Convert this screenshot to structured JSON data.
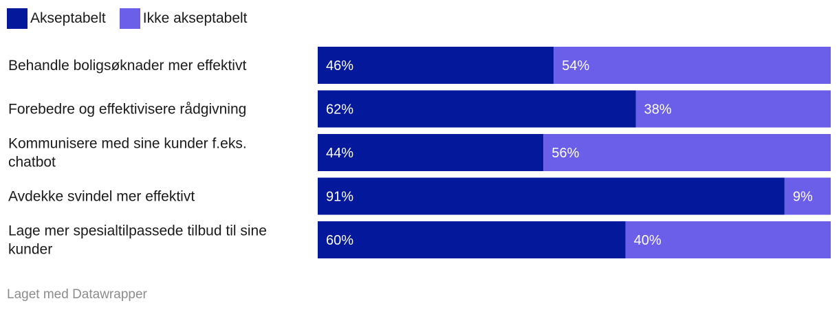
{
  "chart_data": {
    "type": "bar",
    "stacked": true,
    "orientation": "horizontal",
    "categories": [
      "Behandle boligsøknader mer effektivt",
      "Forebedre og effektivisere rådgivning",
      "Kommunisere med sine kunder f.eks. chatbot",
      "Avdekke svindel mer effektivt",
      "Lage mer spesialtilpassede tilbud til sine kunder"
    ],
    "series": [
      {
        "name": "Akseptabelt",
        "values": [
          46,
          62,
          44,
          91,
          60
        ],
        "color": "#03189a"
      },
      {
        "name": "Ikke akseptabelt",
        "values": [
          54,
          38,
          56,
          9,
          40
        ],
        "color": "#6b5ee8"
      }
    ],
    "value_suffix": "%",
    "xlim": [
      0,
      100
    ],
    "legend_position": "top-left",
    "grid": false
  },
  "legend": {
    "items": [
      {
        "label": "Akseptabelt",
        "color": "#03189a"
      },
      {
        "label": "Ikke akseptabelt",
        "color": "#6b5ee8"
      }
    ]
  },
  "category_lines": [
    [
      "Behandle boligsøknader mer effektivt"
    ],
    [
      "Forebedre og effektivisere rådgivning"
    ],
    [
      "Kommunisere med sine kunder f.eks.",
      "chatbot"
    ],
    [
      "Avdekke svindel mer effektivt"
    ],
    [
      "Lage mer spesialtilpassede tilbud til sine",
      "kunder"
    ]
  ],
  "footer": {
    "credit": "Laget med Datawrapper"
  }
}
